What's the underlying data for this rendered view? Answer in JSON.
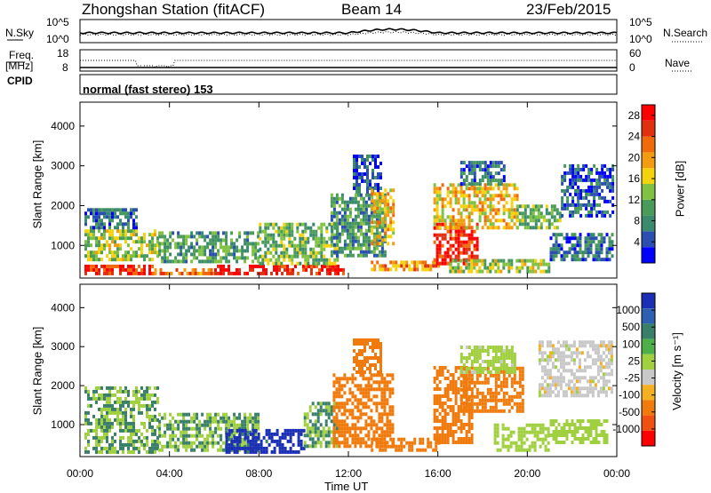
{
  "header": {
    "station": "Zhongshan Station (fitACF)",
    "beam": "Beam 14",
    "date": "23/Feb/2015"
  },
  "top_panels": {
    "nsky_label": "N.Sky",
    "nsearch_label": "N.Search",
    "freq_label": "Freq.",
    "freq_unit": "[MHz]",
    "nave_label": "Nave",
    "cpid_label": "CPID",
    "cpid_text": "normal (fast stereo) 153",
    "noise_ticks_left": [
      "10^5",
      "10^0"
    ],
    "noise_ticks_right": [
      "10^5",
      "10^0"
    ],
    "freq_ticks": [
      "18",
      "8"
    ],
    "nave_ticks": [
      "60",
      "0"
    ]
  },
  "colors": {
    "power": [
      "#0000ff",
      "#2b4fb0",
      "#3a8a6e",
      "#4a9a5a",
      "#7fc140",
      "#f5d20e",
      "#f39c12",
      "#f06a0c",
      "#e03010",
      "#ff0000"
    ],
    "velocity": [
      "#1a2fb5",
      "#2f5fb0",
      "#3a7f6a",
      "#4fb04a",
      "#a0d040",
      "#c8c8c8",
      "#f5b021",
      "#f07a0c",
      "#f05010",
      "#ff0000"
    ]
  },
  "chart_data": [
    {
      "type": "heatmap",
      "name": "power-panel",
      "title": "",
      "xlabel": "Time UT",
      "ylabel": "Slant Range [km]",
      "xlim": [
        0,
        24
      ],
      "ylim": [
        180,
        4600
      ],
      "x_ticks": [
        "00:00",
        "04:00",
        "08:00",
        "12:00",
        "16:00",
        "20:00",
        "00:00"
      ],
      "y_ticks": [
        "1000",
        "2000",
        "3000",
        "4000"
      ],
      "colorbar": {
        "label": "Power [dB]",
        "ticks": [
          "4",
          "8",
          "12",
          "16",
          "20",
          "24",
          "28"
        ],
        "range": [
          0,
          30
        ]
      },
      "regions": [
        {
          "t0": 0.2,
          "t1": 3.2,
          "r0": 250,
          "r1": 500,
          "value": 26
        },
        {
          "t0": 3.2,
          "t1": 6.0,
          "r0": 250,
          "r1": 420,
          "value": 22
        },
        {
          "t0": 6.0,
          "t1": 11.8,
          "r0": 250,
          "r1": 450,
          "value": 27
        },
        {
          "t0": 0.2,
          "t1": 3.5,
          "r0": 600,
          "r1": 1400,
          "value": 14
        },
        {
          "t0": 0.2,
          "t1": 2.5,
          "r0": 1400,
          "r1": 1900,
          "value": 7
        },
        {
          "t0": 3.5,
          "t1": 8.0,
          "r0": 550,
          "r1": 1300,
          "value": 10
        },
        {
          "t0": 8.0,
          "t1": 11.5,
          "r0": 500,
          "r1": 1500,
          "value": 12
        },
        {
          "t0": 11.2,
          "t1": 13.6,
          "r0": 700,
          "r1": 2300,
          "value": 9
        },
        {
          "t0": 12.2,
          "t1": 13.4,
          "r0": 2300,
          "r1": 3200,
          "value": 5
        },
        {
          "t0": 13.0,
          "t1": 14.0,
          "r0": 1000,
          "r1": 2400,
          "value": 18
        },
        {
          "t0": 13.0,
          "t1": 16.0,
          "r0": 350,
          "r1": 550,
          "value": 20
        },
        {
          "t0": 15.8,
          "t1": 17.8,
          "r0": 500,
          "r1": 1500,
          "value": 27
        },
        {
          "t0": 15.8,
          "t1": 19.5,
          "r0": 1400,
          "r1": 2500,
          "value": 18
        },
        {
          "t0": 17.0,
          "t1": 19.0,
          "r0": 2500,
          "r1": 3100,
          "value": 7
        },
        {
          "t0": 16.5,
          "t1": 21.0,
          "r0": 300,
          "r1": 600,
          "value": 14
        },
        {
          "t0": 19.5,
          "t1": 21.5,
          "r0": 1400,
          "r1": 2000,
          "value": 12
        },
        {
          "t0": 21.5,
          "t1": 23.8,
          "r0": 1700,
          "r1": 3000,
          "value": 5
        },
        {
          "t0": 21.0,
          "t1": 23.8,
          "r0": 600,
          "r1": 1300,
          "value": 6
        }
      ]
    },
    {
      "type": "heatmap",
      "name": "velocity-panel",
      "title": "",
      "xlabel": "Time UT",
      "ylabel": "Slant Range [km]",
      "xlim": [
        0,
        24
      ],
      "ylim": [
        180,
        4600
      ],
      "x_ticks": [
        "00:00",
        "04:00",
        "08:00",
        "12:00",
        "16:00",
        "20:00",
        "00:00"
      ],
      "y_ticks": [
        "1000",
        "2000",
        "3000",
        "4000"
      ],
      "colorbar": {
        "label": "Velocity [m s⁻¹]",
        "ticks": [
          "1000",
          "500",
          "100",
          "25",
          "-25",
          "-100",
          "-500",
          "-1000"
        ]
      },
      "regions": [
        {
          "t0": 0.2,
          "t1": 3.5,
          "r0": 250,
          "r1": 1900,
          "value": 100
        },
        {
          "t0": 3.5,
          "t1": 8.0,
          "r0": 300,
          "r1": 1300,
          "value": 100
        },
        {
          "t0": 6.5,
          "t1": 10.0,
          "r0": 250,
          "r1": 800,
          "value": 800
        },
        {
          "t0": 10.0,
          "t1": 11.5,
          "r0": 400,
          "r1": 1500,
          "value": 100
        },
        {
          "t0": 11.3,
          "t1": 14.0,
          "r0": 400,
          "r1": 2300,
          "value": -200
        },
        {
          "t0": 12.2,
          "t1": 13.4,
          "r0": 2300,
          "r1": 3200,
          "value": -200
        },
        {
          "t0": 13.0,
          "t1": 16.0,
          "r0": 300,
          "r1": 600,
          "value": -200
        },
        {
          "t0": 15.8,
          "t1": 17.5,
          "r0": 500,
          "r1": 2500,
          "value": -300
        },
        {
          "t0": 17.0,
          "t1": 19.8,
          "r0": 1300,
          "r1": 2400,
          "value": -200
        },
        {
          "t0": 17.0,
          "t1": 19.5,
          "r0": 2300,
          "r1": 3000,
          "value": 50
        },
        {
          "t0": 18.5,
          "t1": 21.0,
          "r0": 300,
          "r1": 1000,
          "value": 60
        },
        {
          "t0": 20.5,
          "t1": 23.8,
          "r0": 1700,
          "r1": 3100,
          "value": 0
        },
        {
          "t0": 21.0,
          "t1": 23.6,
          "r0": 500,
          "r1": 1100,
          "value": 60
        }
      ]
    }
  ]
}
